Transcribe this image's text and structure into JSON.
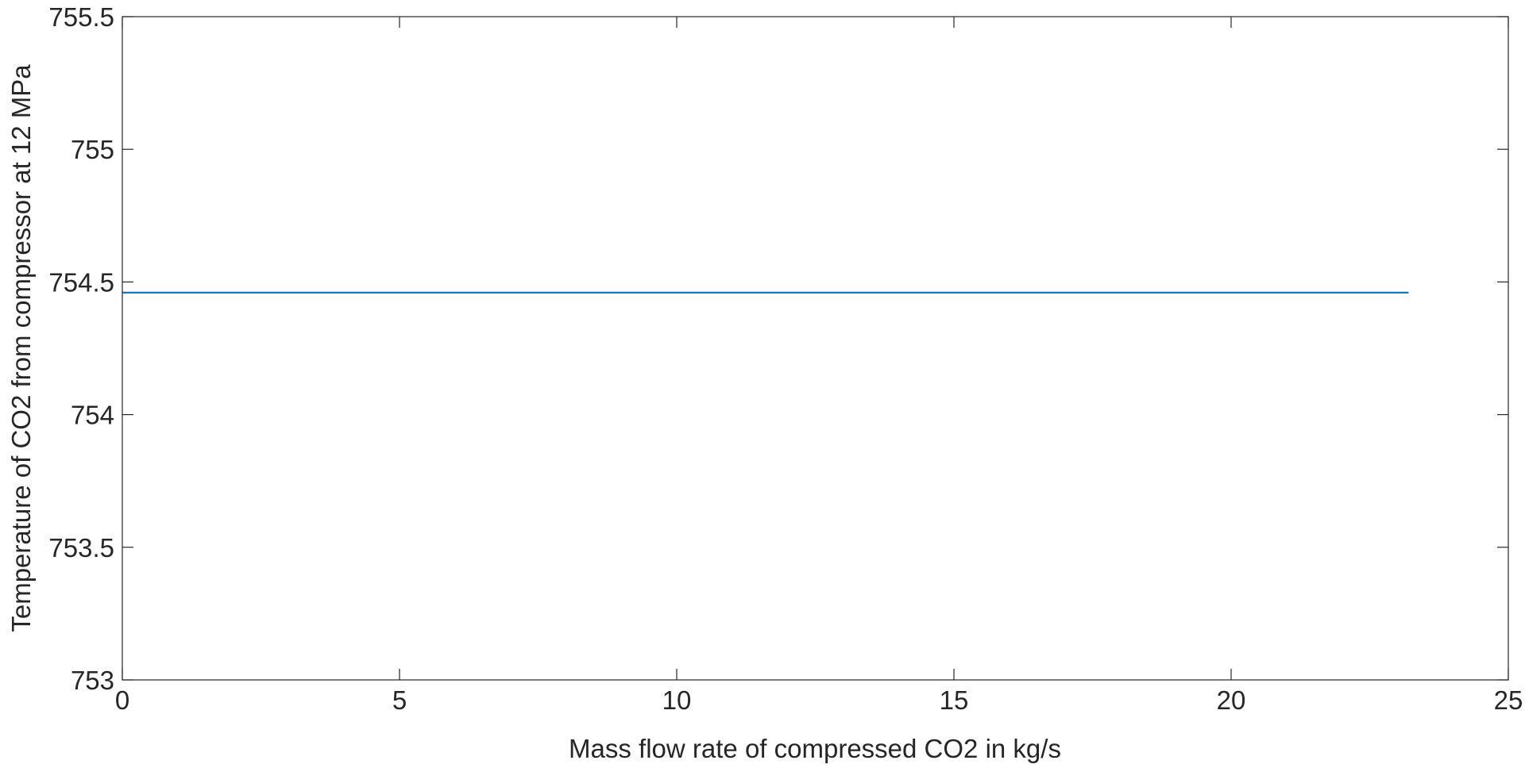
{
  "chart_data": {
    "type": "line",
    "title": "",
    "xlabel": "Mass flow rate of compressed CO2 in kg/s",
    "ylabel": "Temperature of CO2 from compressor at 12 MPa",
    "xlim": [
      0,
      25
    ],
    "ylim": [
      753,
      755.5
    ],
    "xticks": [
      0,
      5,
      10,
      15,
      20,
      25
    ],
    "xtick_labels": [
      "0",
      "5",
      "10",
      "15",
      "20",
      "25"
    ],
    "yticks": [
      753,
      753.5,
      754,
      754.5,
      755,
      755.5
    ],
    "ytick_labels": [
      "753",
      "753.5",
      "754",
      "754.5",
      "755",
      "755.5"
    ],
    "grid": false,
    "box": true,
    "series": [
      {
        "color": "#0072BD",
        "x": [
          0,
          23.2
        ],
        "y": [
          754.46,
          754.46
        ]
      }
    ]
  }
}
